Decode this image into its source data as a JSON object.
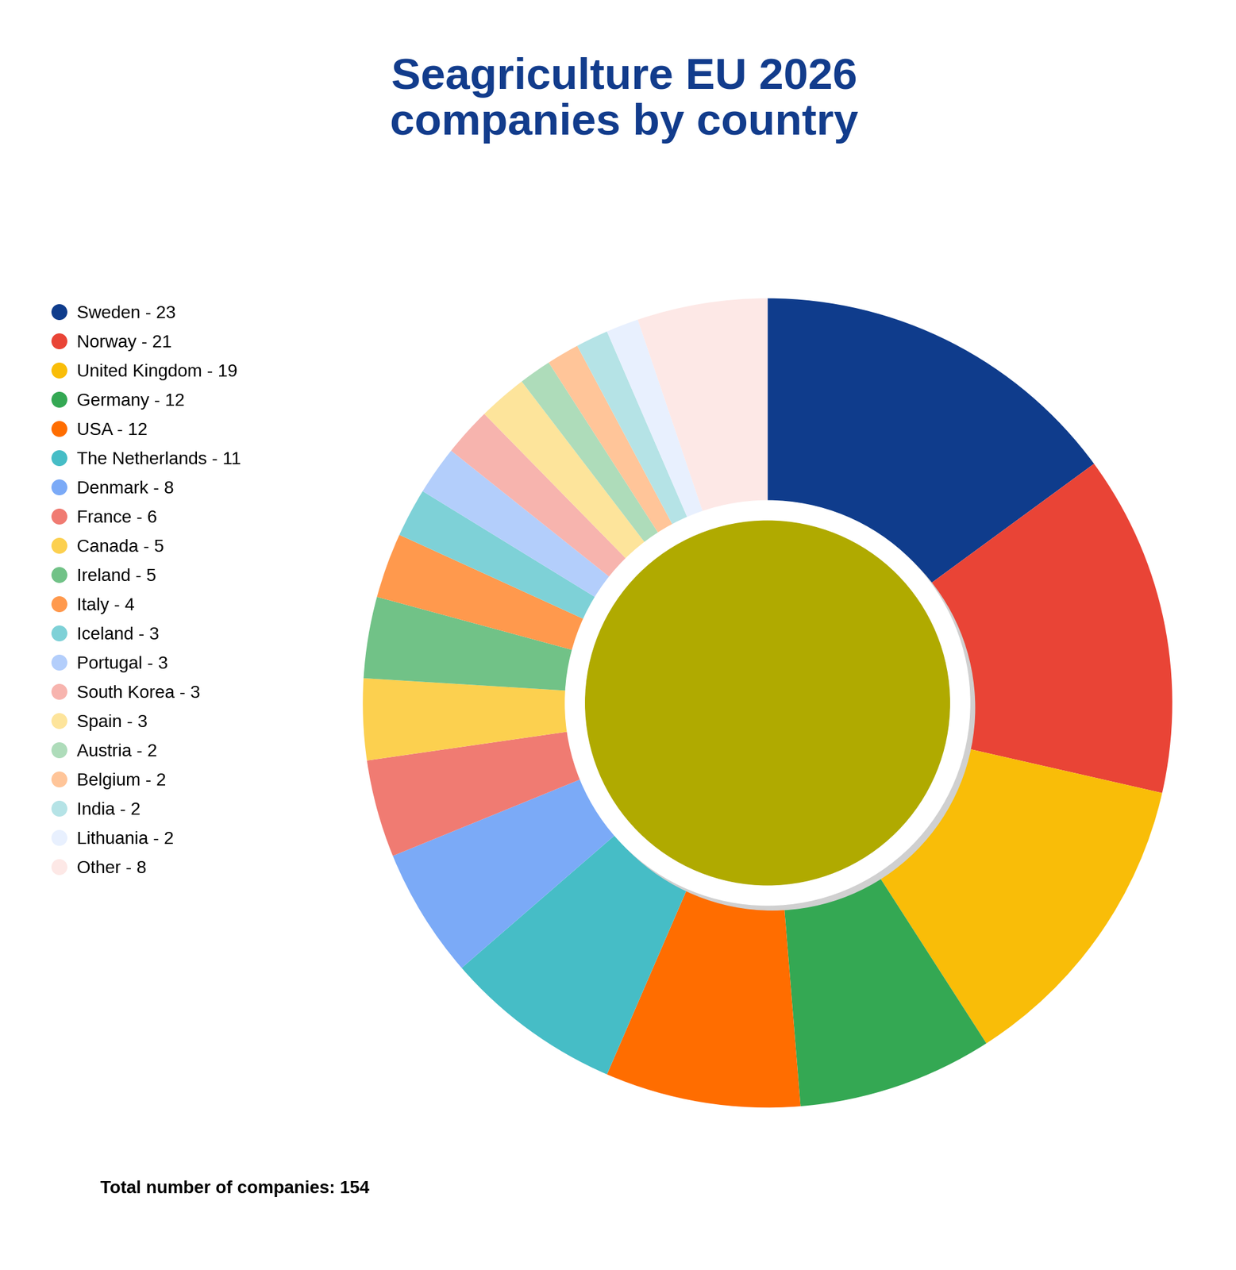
{
  "chart_data": {
    "type": "donut",
    "title": "Seagriculture EU 2026\ncompanies by country",
    "categories": [
      "Sweden - 23",
      "Norway - 21",
      "United Kingdom - 19",
      "Germany - 12",
      "USA - 12",
      "The Netherlands - 11",
      "Denmark - 8",
      "France - 6",
      "Canada - 5",
      "Ireland - 5",
      "Italy - 4",
      "Iceland - 3",
      "Portugal - 3",
      "South Korea - 3",
      "Spain - 3",
      "Austria - 2",
      "Belgium - 2",
      "India - 2",
      "Lithuania - 2",
      "Other - 8"
    ],
    "values": [
      23,
      21,
      19,
      12,
      12,
      11,
      8,
      6,
      5,
      5,
      4,
      3,
      3,
      3,
      3,
      2,
      2,
      2,
      2,
      8
    ],
    "colors": [
      "#0f3c8c",
      "#e94436",
      "#f9bd08",
      "#34a853",
      "#ff6d00",
      "#46bdc6",
      "#7baaf7",
      "#f07b72",
      "#fcd04f",
      "#71c287",
      "#ff994d",
      "#7ed1d7",
      "#b3cefb",
      "#f7b4ae",
      "#fde49b",
      "#aedcba",
      "#ffc599",
      "#b5e3e6",
      "#e8f0fe",
      "#fde8e6"
    ],
    "legend": "upper left",
    "footnote": "Total number of companies: 154"
  }
}
